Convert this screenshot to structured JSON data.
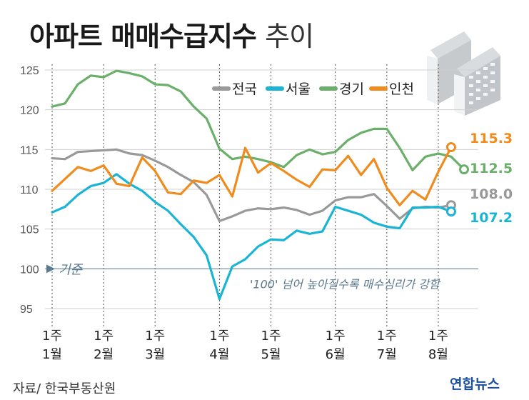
{
  "title": "아파트 매매수급지수",
  "title_sub": "추이",
  "source": "자료/ 한국부동산원",
  "brand": "연합뉴스",
  "chart_data": {
    "type": "line",
    "ylim": [
      93,
      126
    ],
    "yticks": [
      95,
      100,
      105,
      110,
      115,
      120,
      125
    ],
    "xlim": [
      0,
      33
    ],
    "xticks": [
      {
        "x": 0,
        "line1": "1주",
        "line2": "1월"
      },
      {
        "x": 4,
        "line1": "1주",
        "line2": "2월"
      },
      {
        "x": 8,
        "line1": "1주",
        "line2": "3월"
      },
      {
        "x": 13,
        "line1": "1주",
        "line2": "4월"
      },
      {
        "x": 17,
        "line1": "1주",
        "line2": "5월"
      },
      {
        "x": 22,
        "line1": "1주",
        "line2": "6월"
      },
      {
        "x": 26,
        "line1": "1주",
        "line2": "7월"
      },
      {
        "x": 30,
        "line1": "1주",
        "line2": "8월"
      }
    ],
    "baseline": {
      "value": 100,
      "label": "기준",
      "note": "'100' 넘어 높아질수록 매수심리가 강함"
    },
    "series": [
      {
        "name": "경기",
        "color": "#6aaf6a",
        "end_label": "112.5",
        "values": [
          120.4,
          120.8,
          123.2,
          124.3,
          124.1,
          124.9,
          124.6,
          124.2,
          123.2,
          123.1,
          122.3,
          120.4,
          118.9,
          115.1,
          113.8,
          114.1,
          113.8,
          113.4,
          112.8,
          114.3,
          115.0,
          114.4,
          114.7,
          116.2,
          117.1,
          117.6,
          117.6,
          115.2,
          112.4,
          114.1,
          114.5,
          114.1,
          112.5
        ]
      },
      {
        "name": "인천",
        "color": "#f08c1e",
        "end_label": "115.3",
        "values": [
          109.8,
          111.3,
          112.8,
          112.3,
          113.0,
          110.7,
          110.4,
          114.0,
          112.3,
          109.6,
          109.4,
          111.1,
          110.8,
          111.8,
          109.1,
          115.2,
          112.1,
          113.3,
          112.3,
          111.2,
          110.3,
          112.5,
          112.4,
          114.2,
          111.8,
          113.8,
          110.2,
          108.0,
          109.8,
          108.7,
          112.2,
          115.3,
          null
        ]
      },
      {
        "name": "전국",
        "color": "#999999",
        "end_label": "108.0",
        "values": [
          113.9,
          113.8,
          114.7,
          114.8,
          114.9,
          115.0,
          114.5,
          114.3,
          113.6,
          112.8,
          111.8,
          110.9,
          109.3,
          106.0,
          106.6,
          107.3,
          107.6,
          107.5,
          107.7,
          107.4,
          106.8,
          107.3,
          108.6,
          109.0,
          109.0,
          109.4,
          107.9,
          106.3,
          107.6,
          107.8,
          107.7,
          108.0,
          null
        ]
      },
      {
        "name": "서울",
        "color": "#1ab4d4",
        "end_label": "107.2",
        "values": [
          107.1,
          107.8,
          109.3,
          110.4,
          110.8,
          111.9,
          110.7,
          109.8,
          108.4,
          107.3,
          105.6,
          104.0,
          101.7,
          96.2,
          100.3,
          101.2,
          102.8,
          103.7,
          103.6,
          104.8,
          104.4,
          104.7,
          107.8,
          107.3,
          106.8,
          105.8,
          105.3,
          105.1,
          107.7,
          107.7,
          107.8,
          107.2,
          null
        ]
      }
    ]
  }
}
